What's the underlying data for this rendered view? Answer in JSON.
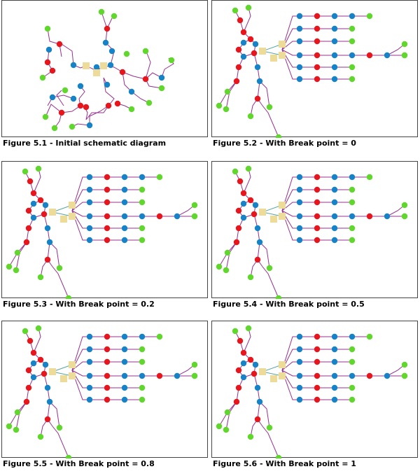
{
  "colors": {
    "red": "#e8151d",
    "blue": "#1583c8",
    "green": "#5fd82b",
    "square": "#eddb9a",
    "link": "#98308f",
    "trunk": "#54a6a0"
  },
  "figures": [
    {
      "caption": "Figure 5.1 - Initial schematic diagram"
    },
    {
      "caption": "Figure 5.2 - With Break point = 0"
    },
    {
      "caption": "Figure 5.3 - With Break point = 0.2"
    },
    {
      "caption": "Figure 5.4 - With Break point = 0.5"
    },
    {
      "caption": "Figure 5.5 - With Break point = 0.8"
    },
    {
      "caption": "Figure 5.6 - With Break point = 1"
    }
  ]
}
